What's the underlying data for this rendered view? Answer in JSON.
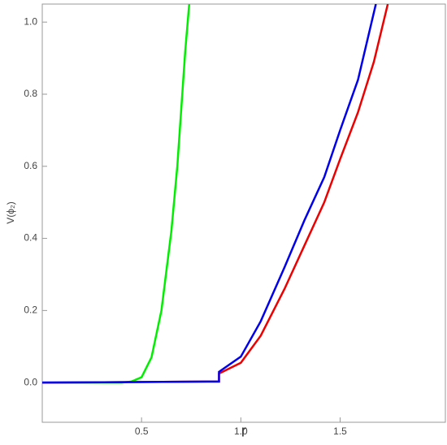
{
  "chart_data": {
    "type": "line",
    "xlabel": "r",
    "ylabel": "V(ϕ₂)",
    "xlim": [
      0.0,
      2.03
    ],
    "ylim": [
      -0.11,
      1.05
    ],
    "xticks": [
      0.5,
      {
        "value": 1.0,
        "label": "1.0"
      },
      1.5
    ],
    "yticks": [
      {
        "value": 0.0,
        "label": "0.0"
      },
      0.2,
      0.4,
      0.6,
      0.8,
      {
        "value": 1.0,
        "label": "1.0"
      }
    ],
    "series": [
      {
        "color": "#00ee00",
        "x": [
          0.0,
          0.4,
          0.45,
          0.5,
          0.55,
          0.6,
          0.65,
          0.68,
          0.7,
          0.72,
          0.74
        ],
        "values": [
          0.0,
          0.0,
          0.003,
          0.015,
          0.07,
          0.2,
          0.42,
          0.6,
          0.76,
          0.92,
          1.05
        ]
      },
      {
        "color": "#ee0000",
        "x": [
          0.0,
          0.89,
          0.89,
          1.0,
          1.1,
          1.22,
          1.32,
          1.42,
          1.5,
          1.59,
          1.67,
          1.74
        ],
        "values": [
          0.0,
          0.003,
          0.025,
          0.055,
          0.13,
          0.26,
          0.38,
          0.5,
          0.62,
          0.75,
          0.89,
          1.05
        ]
      },
      {
        "color": "#0000ee",
        "x": [
          0.0,
          0.89,
          0.89,
          1.0,
          1.1,
          1.22,
          1.32,
          1.42,
          1.5,
          1.59,
          1.68
        ],
        "values": [
          0.0,
          0.003,
          0.03,
          0.072,
          0.17,
          0.32,
          0.45,
          0.57,
          0.7,
          0.84,
          1.05
        ]
      }
    ]
  }
}
